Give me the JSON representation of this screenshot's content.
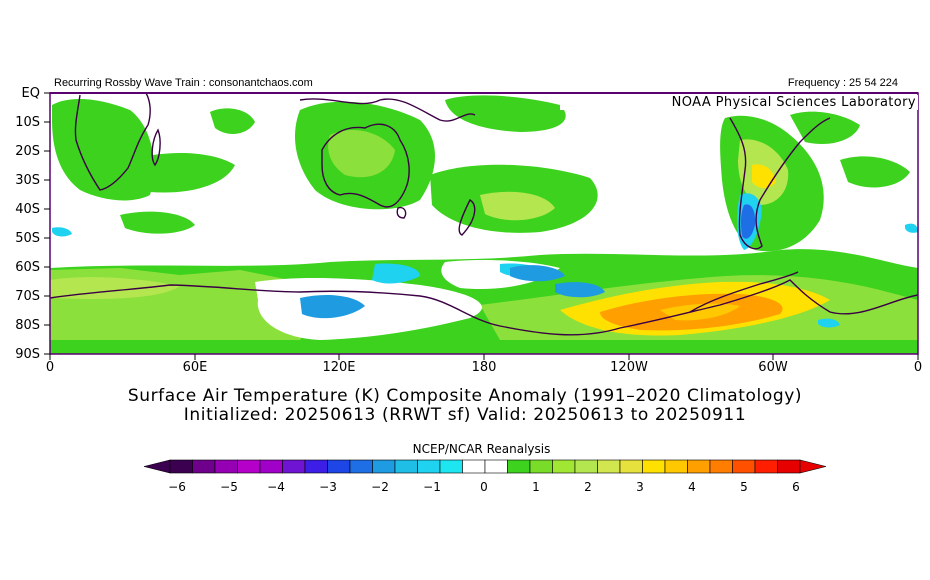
{
  "header": {
    "left_text": "Recurring Rossby Wave Train : consonantchaos.com",
    "right_text": "Frequency : 25 54 224"
  },
  "credit": "NOAA Physical Sciences Laboratory",
  "map": {
    "y_axis_labels": [
      "EQ",
      "10S",
      "20S",
      "30S",
      "40S",
      "50S",
      "60S",
      "70S",
      "80S",
      "90S"
    ],
    "x_axis_labels": [
      "0",
      "60E",
      "120E",
      "180",
      "120W",
      "60W",
      "0"
    ],
    "projection": "cylindrical equidistant, 0 to 360, EQ to 90S",
    "colors": {
      "frame": "#5a0070",
      "coastline": "#3b0044",
      "positive_1": "#3cd21e",
      "positive_1_5": "#8ce03c",
      "positive_2": "#b4e650",
      "positive_3": "#ffe100",
      "positive_4": "#ffa000",
      "negative_1": "#1ed2f0",
      "negative_1_5": "#1e9be1",
      "negative_2": "#1e6ee6"
    }
  },
  "title": {
    "line1": "Surface Air Temperature (K) Composite Anomaly (1991–2020 Climatology)",
    "line2": "Initialized: 20250613 (RRWT sf) Valid: 20250613 to 20250911"
  },
  "colorbar": {
    "title": "NCEP/NCAR Reanalysis",
    "tick_labels": [
      "−6",
      "−5",
      "−4",
      "−3",
      "−2",
      "−1",
      "0",
      "1",
      "2",
      "3",
      "4",
      "5",
      "6"
    ],
    "colors": [
      "#3c0050",
      "#6e008c",
      "#9600b4",
      "#b400c8",
      "#a000c8",
      "#6e14d2",
      "#3c1ee6",
      "#1e46e6",
      "#1e6ee6",
      "#1e9be1",
      "#1ebee6",
      "#1ed2f0",
      "#1ee6f0",
      "#ffffff",
      "#ffffff",
      "#3cd21e",
      "#78dc28",
      "#a0e632",
      "#b4e650",
      "#d2e650",
      "#e6e13c",
      "#ffe100",
      "#ffc800",
      "#ffa000",
      "#ff7d00",
      "#ff5000",
      "#ff1e00",
      "#e60000"
    ]
  }
}
